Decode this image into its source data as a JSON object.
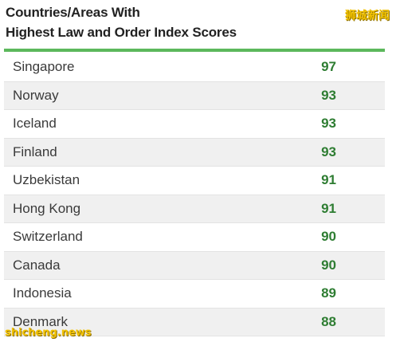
{
  "watermark_top": "狮城新闻",
  "watermark_bottom": "shicheng.news",
  "colors": {
    "accent_rule": "#5cb85c",
    "score_text": "#2e7d32",
    "stripe": "#f0f0f0"
  },
  "chart_data": {
    "type": "table",
    "title_line1": "Countries/Areas With",
    "title_line2": "Highest Law and Order Index Scores",
    "rows": [
      {
        "country": "Singapore",
        "score": 97
      },
      {
        "country": "Norway",
        "score": 93
      },
      {
        "country": "Iceland",
        "score": 93
      },
      {
        "country": "Finland",
        "score": 93
      },
      {
        "country": "Uzbekistan",
        "score": 91
      },
      {
        "country": "Hong Kong",
        "score": 91
      },
      {
        "country": "Switzerland",
        "score": 90
      },
      {
        "country": "Canada",
        "score": 90
      },
      {
        "country": "Indonesia",
        "score": 89
      },
      {
        "country": "Denmark",
        "score": 88
      }
    ]
  }
}
